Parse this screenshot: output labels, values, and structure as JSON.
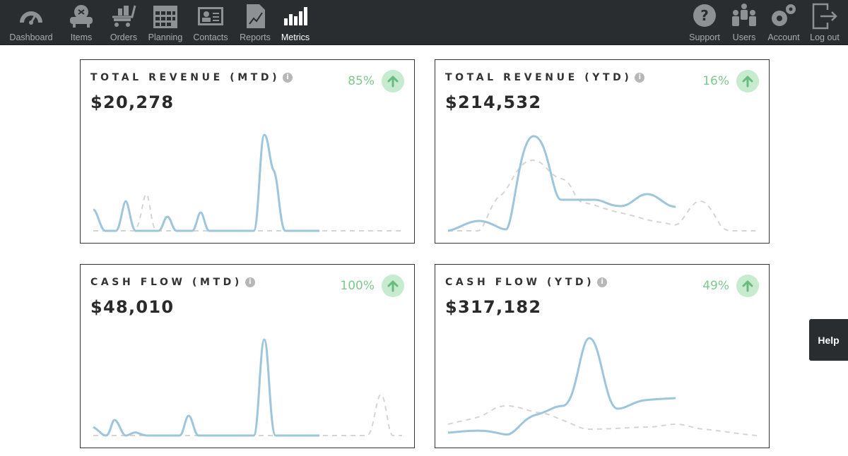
{
  "nav": {
    "left": [
      {
        "label": "Dashboard",
        "icon": "gauge-icon"
      },
      {
        "label": "Items",
        "icon": "sofa-icon"
      },
      {
        "label": "Orders",
        "icon": "cart-icon"
      },
      {
        "label": "Planning",
        "icon": "calendar-icon"
      },
      {
        "label": "Contacts",
        "icon": "contact-card-icon"
      },
      {
        "label": "Reports",
        "icon": "report-chart-icon"
      },
      {
        "label": "Metrics",
        "icon": "bar-chart-icon",
        "active": true
      }
    ],
    "right": [
      {
        "label": "Support",
        "icon": "question-icon"
      },
      {
        "label": "Users",
        "icon": "users-icon"
      },
      {
        "label": "Account",
        "icon": "gears-icon"
      },
      {
        "label": "Log out",
        "icon": "logout-icon"
      }
    ]
  },
  "cards": [
    {
      "title": "TOTAL REVENUE (MTD)",
      "value": "$20,278",
      "change": "85%",
      "trend": "up"
    },
    {
      "title": "TOTAL REVENUE (YTD)",
      "value": "$214,532",
      "change": "16%",
      "trend": "up"
    },
    {
      "title": "CASH FLOW (MTD)",
      "value": "$48,010",
      "change": "100%",
      "trend": "up"
    },
    {
      "title": "CASH FLOW (YTD)",
      "value": "$317,182",
      "change": "49%",
      "trend": "up"
    }
  ],
  "help": {
    "label": "Help"
  },
  "colors": {
    "navbar": "#2a2d2f",
    "current_series": "#9dc6dd",
    "previous_series": "#d5d5d5",
    "positive": "#7cc88f",
    "positive_bg": "#c6ebcf"
  }
}
